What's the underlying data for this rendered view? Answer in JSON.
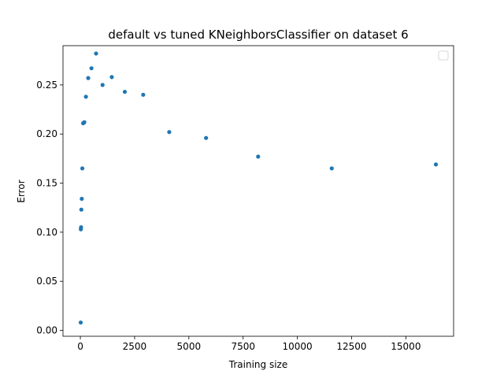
{
  "chart_data": {
    "type": "scatter",
    "title": "default vs tuned KNeighborsClassifier on dataset 6",
    "xlabel": "Training size",
    "ylabel": "Error",
    "xlim": [
      -800,
      17200
    ],
    "ylim": [
      -0.006,
      0.29
    ],
    "xticks": [
      0,
      2500,
      5000,
      7500,
      10000,
      12500,
      15000
    ],
    "xtick_labels": [
      "0",
      "2500",
      "5000",
      "7500",
      "10000",
      "12500",
      "15000"
    ],
    "yticks": [
      0.0,
      0.05,
      0.1,
      0.15,
      0.2,
      0.25
    ],
    "ytick_labels": [
      "0.00",
      "0.05",
      "0.10",
      "0.15",
      "0.20",
      "0.25"
    ],
    "grid": false,
    "legend": {
      "placement": "top-right",
      "entries": []
    },
    "marker_color": "#1f77b4",
    "series": [
      {
        "x": [
          16,
          23,
          32,
          45,
          64,
          91,
          128,
          181,
          256,
          362,
          512,
          724,
          1024,
          1448,
          2048,
          2896,
          4096,
          5793,
          8192,
          11585,
          16384
        ],
        "y": [
          0.008,
          0.103,
          0.105,
          0.123,
          0.134,
          0.165,
          0.211,
          0.212,
          0.238,
          0.257,
          0.267,
          0.282,
          0.25,
          0.258,
          0.243,
          0.24,
          0.202,
          0.196,
          0.177,
          0.165,
          0.169
        ]
      }
    ]
  }
}
